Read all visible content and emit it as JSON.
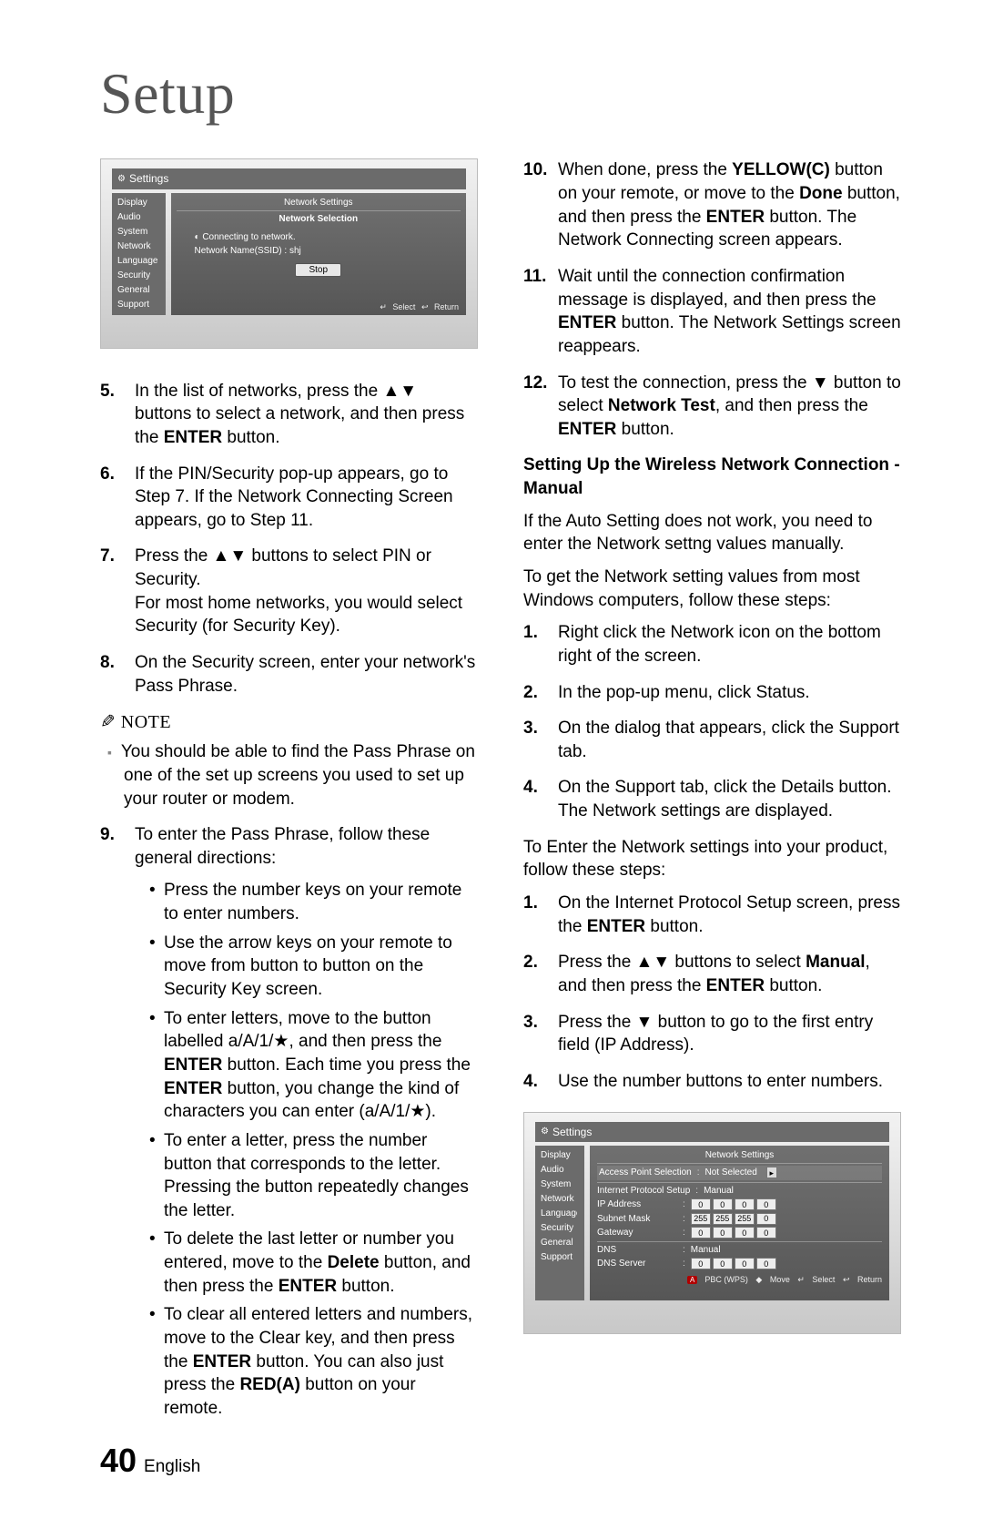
{
  "title": "Setup",
  "page_number": "40",
  "language": "English",
  "colors": {
    "text": "#000000",
    "title": "#555555",
    "bg": "#ffffff",
    "panel_dark": "#6b6b6b",
    "panel_light": "#e8e8e8"
  },
  "screenshot1": {
    "header_label": "Settings",
    "menu": [
      "Display",
      "Audio",
      "System",
      "Network",
      "Language",
      "Security",
      "General",
      "Support"
    ],
    "panel_title": "Network Settings",
    "panel_subtitle": "Network Selection",
    "connecting": "Connecting to network.",
    "ssid_line": "Network Name(SSID) : shj",
    "stop": "Stop",
    "hint_select": "Select",
    "hint_return": "Return"
  },
  "screenshot2": {
    "header_label": "Settings",
    "menu_trunc": [
      "Display",
      "Audio",
      "System",
      "Network",
      "Language",
      "Security",
      "General",
      "Support"
    ],
    "panel_title": "Network Settings",
    "aps_label": "Access Point Selection",
    "aps_value": "Not Selected",
    "ips_label": "Internet Protocol Setup",
    "ips_value": "Manual",
    "rows": [
      {
        "label": "IP Address",
        "cells": [
          "0",
          "0",
          "0",
          "0"
        ]
      },
      {
        "label": "Subnet Mask",
        "cells": [
          "255",
          "255",
          "255",
          "0"
        ]
      },
      {
        "label": "Gateway",
        "cells": [
          "0",
          "0",
          "0",
          "0"
        ]
      }
    ],
    "dns_label": "DNS",
    "dns_value": "Manual",
    "dns_server": {
      "label": "DNS Server",
      "cells": [
        "0",
        "0",
        "0",
        "0"
      ]
    },
    "hints": {
      "a": "PBC (WPS)",
      "move": "Move",
      "select": "Select",
      "return": "Return"
    }
  },
  "left_steps": {
    "5": "In the list of networks, press the ▲▼ buttons to select a network, and then press the <b>ENTER</b> button.",
    "6": "If the PIN/Security pop-up appears, go to Step 7. If the Network Connecting Screen appears, go to Step 11.",
    "7": "Press the ▲▼ buttons to select PIN or Security.<br>For most home networks, you would select Security (for Security Key).",
    "8": "On the Security screen, enter your network's Pass Phrase."
  },
  "note_label": "NOTE",
  "note_item": "You should be able to find the Pass Phrase on one of the set up screens you used to set up your router or modem.",
  "step9_intro": "To enter the Pass Phrase, follow these general directions:",
  "step9_bullets": [
    "Press the number keys on your remote to enter numbers.",
    "Use the arrow keys on your remote to move from button to button on the Security Key screen.",
    "To enter letters, move to the button labelled a/A/1/★, and then press the <b>ENTER</b> button. Each time you press the <b>ENTER</b> button, you change the kind of characters you can enter (a/A/1/★).",
    "To enter a letter, press the number button that corresponds to the letter. Pressing the button repeatedly changes the letter.",
    "To delete the last letter or number you entered, move to the <b>Delete</b> button, and then press the <b>ENTER</b> button.",
    "To clear all entered letters and numbers, move to the Clear key, and then press the <b>ENTER</b> button. You can also just press the <b>RED(A)</b> button on your remote."
  ],
  "right_steps": {
    "10": "When done, press the <b>YELLOW(C)</b> button on your remote, or move to the <b>Done</b> button, and then press the <b>ENTER</b> button. The Network Connecting screen appears.",
    "11": "Wait until the connection confirmation message is displayed, and then press the <b>ENTER</b> button. The Network Settings screen reappears.",
    "12": "To test the connection, press the ▼ button to select <b>Network Test</b>, and then press the <b>ENTER</b> button."
  },
  "manual_heading": "Setting Up the Wireless Network Connection - Manual",
  "manual_intro1": "If the Auto Setting does not work, you need to enter the Network settng values manually.",
  "manual_intro2": "To get the Network setting values from most Windows computers, follow these steps:",
  "manual_steps_a": {
    "1": "Right click the Network icon on the bottom right of the screen.",
    "2": "In the pop-up menu, click Status.",
    "3": "On the dialog that appears, click the Support tab.",
    "4": "On the Support tab, click the Details button. The Network settings are displayed."
  },
  "manual_mid": "To Enter the Network settings into your product, follow these steps:",
  "manual_steps_b": {
    "1": "On the Internet Protocol Setup screen, press the <b>ENTER</b> button.",
    "2": "Press the ▲▼ buttons to select <b>Manual</b>, and then press the <b>ENTER</b> button.",
    "3": "Press the ▼ button to go to the first entry field (IP Address).",
    "4": "Use the number buttons to enter numbers."
  }
}
